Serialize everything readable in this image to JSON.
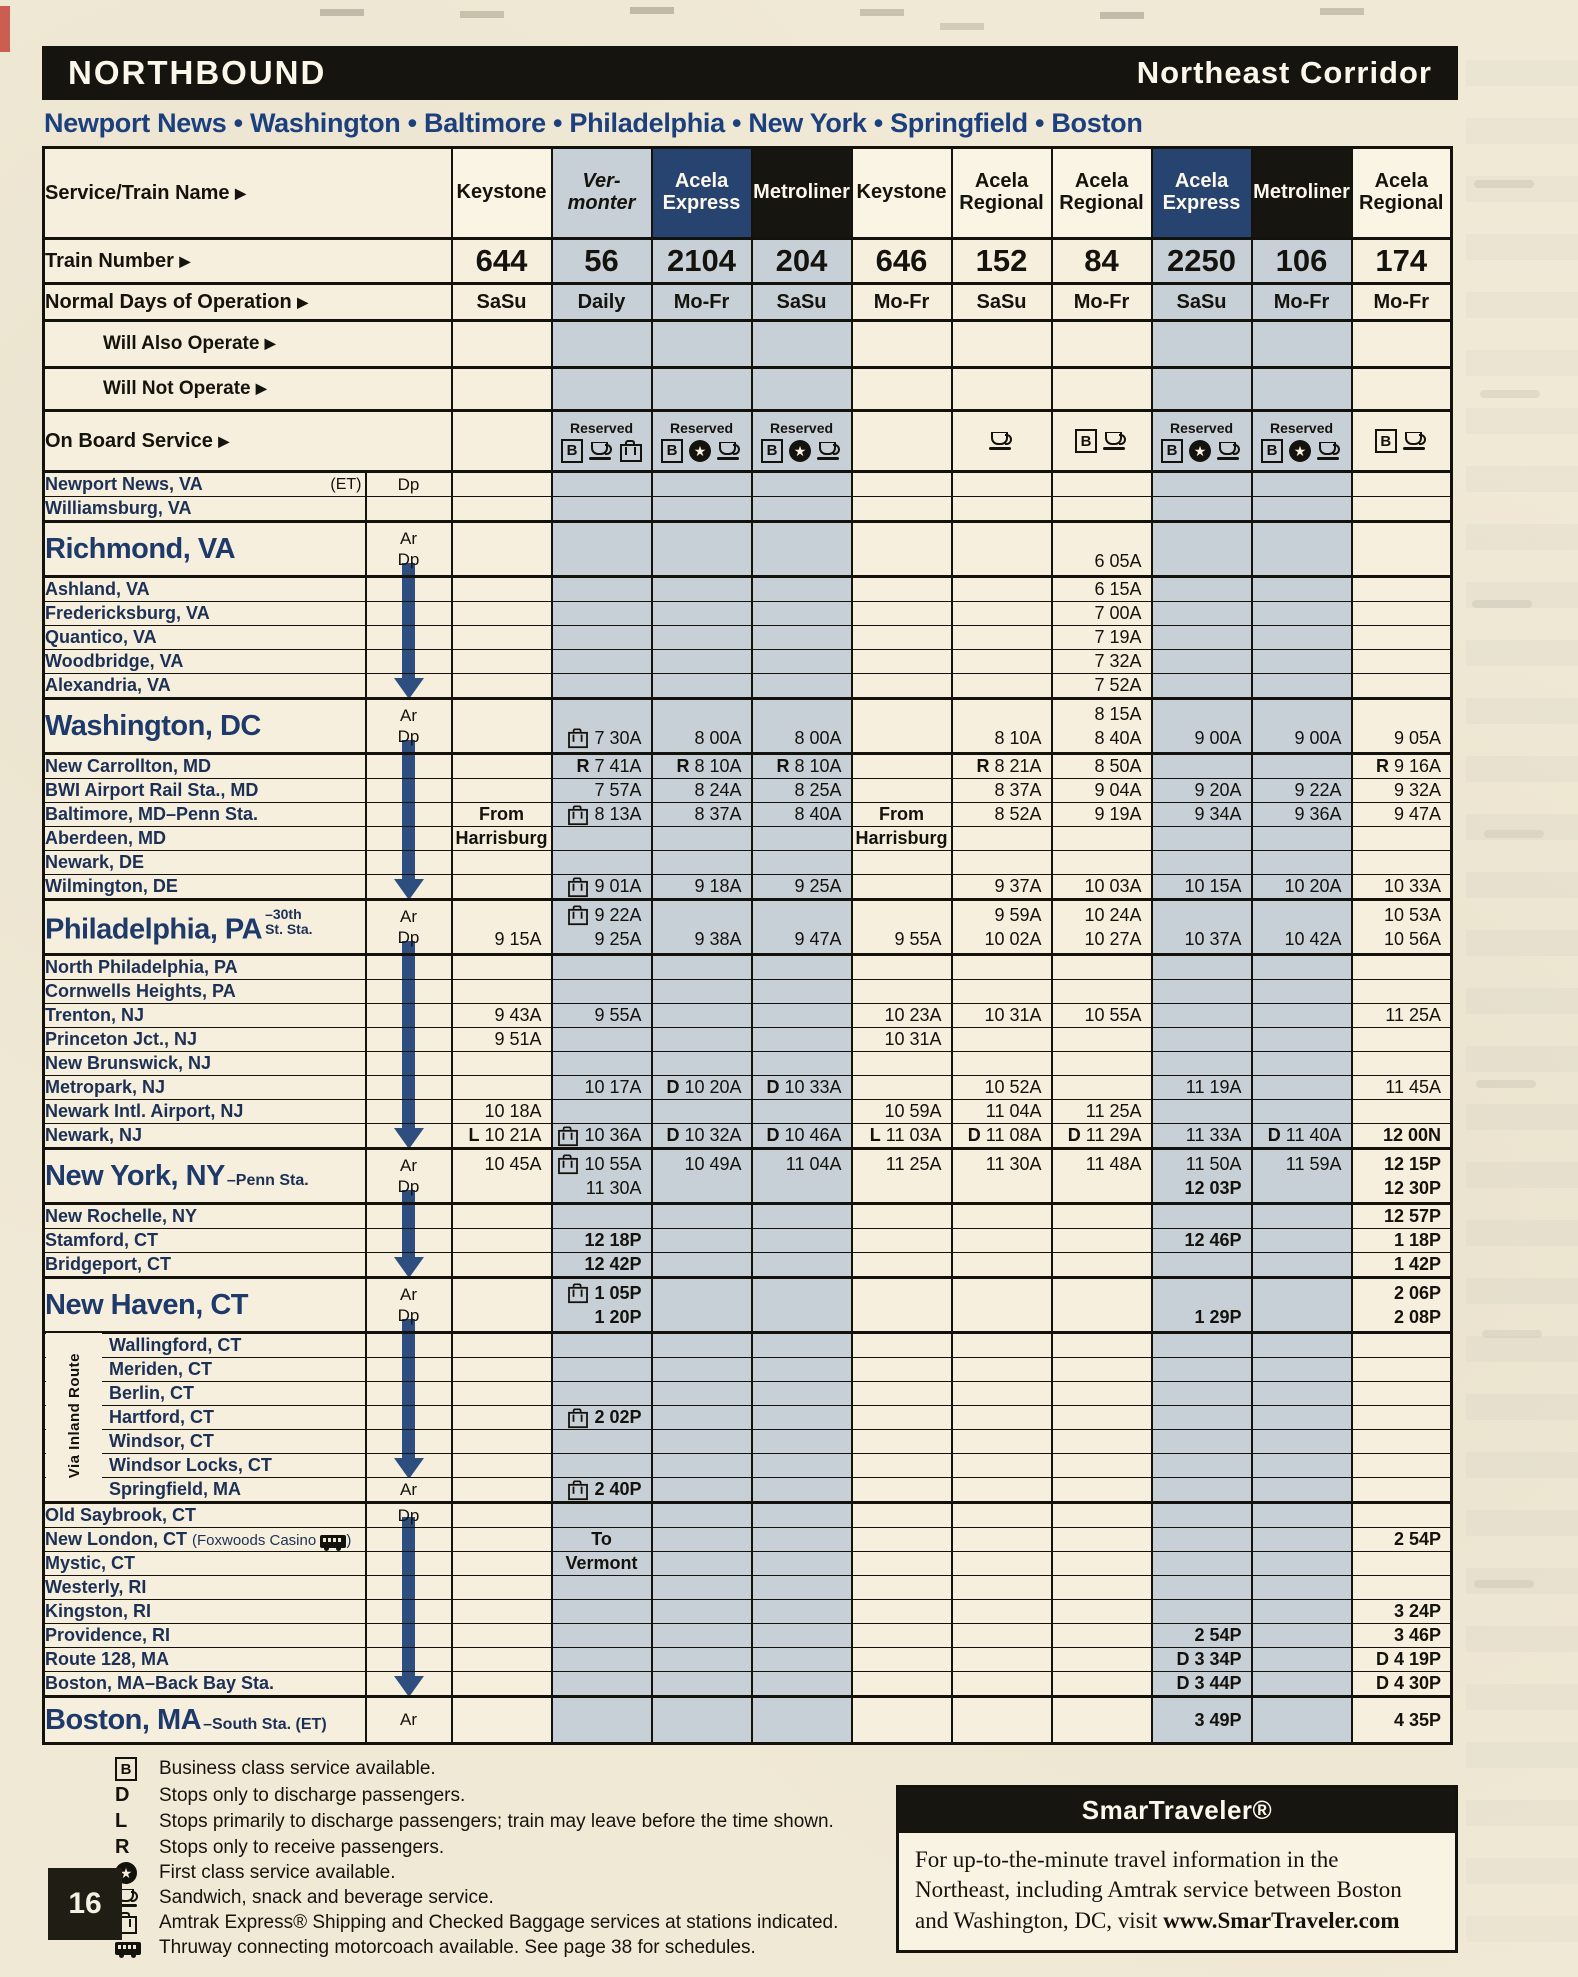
{
  "banner": {
    "left": "NORTHBOUND",
    "right": "Northeast Corridor"
  },
  "route_line": "Newport News • Washington • Baltimore • Philadelphia • New York • Springfield • Boston",
  "page_number": "16",
  "inland_label": "Via Inland Route",
  "labels": {
    "service": "Service/Train Name",
    "number": "Train Number",
    "days": "Normal Days of Operation",
    "also": "Will Also Operate",
    "not_op": "Will Not Operate",
    "onboard": "On Board Service",
    "reserved": "Reserved"
  },
  "trains": [
    {
      "service": [
        "Keystone"
      ],
      "style": "plain",
      "number": "644",
      "days": "SaSu",
      "shaded": false,
      "reserved": false,
      "icons": []
    },
    {
      "service": [
        "Ver-",
        "monter"
      ],
      "style": "gray",
      "number": "56",
      "days": "Daily",
      "shaded": true,
      "reserved": true,
      "icons": [
        "b",
        "cup",
        "bag"
      ]
    },
    {
      "service": [
        "Acela",
        "Express"
      ],
      "style": "navy",
      "number": "2104",
      "days": "Mo-Fr",
      "shaded": true,
      "reserved": true,
      "icons": [
        "b",
        "star",
        "cup"
      ]
    },
    {
      "service": [
        "Metroliner"
      ],
      "style": "black",
      "number": "204",
      "days": "SaSu",
      "shaded": true,
      "reserved": true,
      "icons": [
        "b",
        "star",
        "cup"
      ]
    },
    {
      "service": [
        "Keystone"
      ],
      "style": "plain",
      "number": "646",
      "days": "Mo-Fr",
      "shaded": false,
      "reserved": false,
      "icons": []
    },
    {
      "service": [
        "Acela",
        "Regional"
      ],
      "style": "plain",
      "number": "152",
      "days": "SaSu",
      "shaded": false,
      "reserved": false,
      "icons": [
        "cup"
      ]
    },
    {
      "service": [
        "Acela",
        "Regional"
      ],
      "style": "plain",
      "number": "84",
      "days": "Mo-Fr",
      "shaded": false,
      "reserved": false,
      "icons": [
        "b",
        "cup"
      ]
    },
    {
      "service": [
        "Acela",
        "Express"
      ],
      "style": "navy",
      "number": "2250",
      "days": "SaSu",
      "shaded": true,
      "reserved": true,
      "icons": [
        "b",
        "star",
        "cup"
      ]
    },
    {
      "service": [
        "Metroliner"
      ],
      "style": "black",
      "number": "106",
      "days": "Mo-Fr",
      "shaded": true,
      "reserved": true,
      "icons": [
        "b",
        "star",
        "cup"
      ]
    },
    {
      "service": [
        "Acela",
        "Regional"
      ],
      "style": "plain",
      "number": "174",
      "days": "Mo-Fr",
      "shaded": false,
      "reserved": false,
      "icons": [
        "b",
        "cup"
      ]
    }
  ],
  "stations": [
    {
      "kind": "n",
      "label": "Newport News, VA",
      "suffix": "(ET)",
      "note": "Dp",
      "arrow": "",
      "cells": [
        "",
        "",
        "",
        "",
        "",
        "",
        "",
        "",
        "",
        ""
      ]
    },
    {
      "kind": "n",
      "label": "Williamsburg, VA",
      "note": "",
      "arrow": "",
      "cells": [
        "",
        "",
        "",
        "",
        "",
        "",
        "",
        "",
        "",
        ""
      ]
    },
    {
      "kind": "c",
      "label": "Richmond, VA",
      "note": "Ar||Dp",
      "arrow": "start",
      "cells": [
        "",
        "",
        "",
        "",
        "",
        "",
        "||6 05A",
        "",
        "",
        ""
      ]
    },
    {
      "kind": "n",
      "label": "Ashland, VA",
      "note": "",
      "arrow": "line",
      "cells": [
        "",
        "",
        "",
        "",
        "",
        "",
        "6 15A",
        "",
        "",
        ""
      ]
    },
    {
      "kind": "n",
      "label": "Fredericksburg, VA",
      "note": "",
      "arrow": "line",
      "cells": [
        "",
        "",
        "",
        "",
        "",
        "",
        "7 00A",
        "",
        "",
        ""
      ]
    },
    {
      "kind": "n",
      "label": "Quantico, VA",
      "note": "",
      "arrow": "line",
      "cells": [
        "",
        "",
        "",
        "",
        "",
        "",
        "7 19A",
        "",
        "",
        ""
      ]
    },
    {
      "kind": "n",
      "label": "Woodbridge, VA",
      "note": "",
      "arrow": "line",
      "cells": [
        "",
        "",
        "",
        "",
        "",
        "",
        "7 32A",
        "",
        "",
        ""
      ]
    },
    {
      "kind": "n",
      "label": "Alexandria, VA",
      "note": "",
      "arrow": "head",
      "cells": [
        "",
        "",
        "",
        "",
        "",
        "",
        "7 52A",
        "",
        "",
        ""
      ]
    },
    {
      "kind": "c",
      "label": "Washington, DC",
      "note": "Ar||Dp",
      "arrow": "start",
      "cells": [
        "",
        "||bag|7 30A",
        "||8 00A",
        "||8 00A",
        "",
        "||8 10A",
        "8 15A||8 40A",
        "||9 00A",
        "||9 00A",
        "||9 05A"
      ]
    },
    {
      "kind": "n",
      "label": "New Carrollton, MD",
      "note": "",
      "arrow": "line",
      "cells": [
        "",
        "R|7 41A",
        "R|8 10A",
        "R|8 10A",
        "",
        "R|8 21A",
        "8 50A",
        "",
        "",
        "R|9 16A"
      ]
    },
    {
      "kind": "n",
      "label": "BWI Airport Rail Sta., MD",
      "note": "",
      "arrow": "line",
      "cells": [
        "",
        "7 57A",
        "8 24A",
        "8 25A",
        "",
        "8 37A",
        "9 04A",
        "9 20A",
        "9 22A",
        "9 32A"
      ]
    },
    {
      "kind": "n",
      "label": "Baltimore, MD–Penn Sta.",
      "note": "",
      "arrow": "line",
      "cells": [
        "From",
        "bag|8 13A",
        "8 37A",
        "8 40A",
        "From",
        "8 52A",
        "9 19A",
        "9 34A",
        "9 36A",
        "9 47A"
      ]
    },
    {
      "kind": "n",
      "label": "Aberdeen, MD",
      "note": "",
      "arrow": "line",
      "cells": [
        "Harrisburg",
        "",
        "",
        "",
        "Harrisburg",
        "",
        "",
        "",
        "",
        ""
      ]
    },
    {
      "kind": "n",
      "label": "Newark, DE",
      "note": "",
      "arrow": "line",
      "cells": [
        "",
        "",
        "",
        "",
        "",
        "",
        "",
        "",
        "",
        ""
      ]
    },
    {
      "kind": "n",
      "label": "Wilmington, DE",
      "note": "",
      "arrow": "head",
      "cells": [
        "",
        "bag|9 01A",
        "9 18A",
        "9 25A",
        "",
        "9 37A",
        "10 03A",
        "10 15A",
        "10 20A",
        "10 33A"
      ]
    },
    {
      "kind": "c",
      "label": "Philadelphia, PA",
      "stack": [
        "–30th",
        "St. Sta."
      ],
      "note": "Ar||Dp",
      "arrow": "start",
      "cells": [
        "||9 15A",
        "bag|9 22A||9 25A",
        "||9 38A",
        "||9 47A",
        "||9 55A",
        "9 59A||10 02A",
        "10 24A||10 27A",
        "||10 37A",
        "||10 42A",
        "10 53A||10 56A"
      ]
    },
    {
      "kind": "n",
      "label": "North Philadelphia, PA",
      "note": "",
      "arrow": "line",
      "cells": [
        "",
        "",
        "",
        "",
        "",
        "",
        "",
        "",
        "",
        ""
      ]
    },
    {
      "kind": "n",
      "label": "Cornwells Heights, PA",
      "note": "",
      "arrow": "line",
      "cells": [
        "",
        "",
        "",
        "",
        "",
        "",
        "",
        "",
        "",
        ""
      ]
    },
    {
      "kind": "n",
      "label": "Trenton, NJ",
      "note": "",
      "arrow": "line",
      "cells": [
        "9 43A",
        "9 55A",
        "",
        "",
        "10 23A",
        "10 31A",
        "10 55A",
        "",
        "",
        "11 25A"
      ]
    },
    {
      "kind": "n",
      "label": "Princeton Jct., NJ",
      "note": "",
      "arrow": "line",
      "cells": [
        "9 51A",
        "",
        "",
        "",
        "10 31A",
        "",
        "",
        "",
        "",
        ""
      ]
    },
    {
      "kind": "n",
      "label": "New Brunswick, NJ",
      "note": "",
      "arrow": "line",
      "cells": [
        "",
        "",
        "",
        "",
        "",
        "",
        "",
        "",
        "",
        ""
      ]
    },
    {
      "kind": "n",
      "label": "Metropark, NJ",
      "note": "",
      "arrow": "line",
      "cells": [
        "",
        "10 17A",
        "D|10 20A",
        "D|10 33A",
        "",
        "10 52A",
        "",
        "11 19A",
        "",
        "11 45A"
      ]
    },
    {
      "kind": "n",
      "label": "Newark Intl. Airport, NJ",
      "note": "",
      "arrow": "line",
      "cells": [
        "10 18A",
        "",
        "",
        "",
        "10 59A",
        "11 04A",
        "11 25A",
        "",
        "",
        ""
      ]
    },
    {
      "kind": "n",
      "label": "Newark, NJ",
      "note": "",
      "arrow": "head",
      "cells": [
        "L|10 21A",
        "bag|10 36A",
        "D|10 32A",
        "D|10 46A",
        "L|11 03A",
        "D|11 08A",
        "D|11 29A",
        "11 33A",
        "D|11 40A",
        "12 00N"
      ]
    },
    {
      "kind": "c",
      "label": "New York, NY",
      "sub": "–Penn Sta.",
      "note": "Ar||Dp",
      "arrow": "start",
      "cells": [
        "10 45A||",
        "bag|10 55A||11 30A",
        "10 49A||",
        "11 04A||",
        "11 25A||",
        "11 30A||",
        "11 48A||",
        "11 50A||12 03P",
        "11 59A||",
        "12 15P||12 30P"
      ]
    },
    {
      "kind": "n",
      "label": "New Rochelle, NY",
      "note": "",
      "arrow": "line",
      "cells": [
        "",
        "",
        "",
        "",
        "",
        "",
        "",
        "",
        "",
        "12 57P"
      ]
    },
    {
      "kind": "n",
      "label": "Stamford, CT",
      "note": "",
      "arrow": "line",
      "cells": [
        "",
        "12 18P",
        "",
        "",
        "",
        "",
        "",
        "12 46P",
        "",
        "1 18P"
      ]
    },
    {
      "kind": "n",
      "label": "Bridgeport, CT",
      "note": "",
      "arrow": "head",
      "cells": [
        "",
        "12 42P",
        "",
        "",
        "",
        "",
        "",
        "",
        "",
        "1 42P"
      ]
    },
    {
      "kind": "c",
      "label": "New Haven, CT",
      "note": "Ar||Dp",
      "arrow": "start",
      "cells": [
        "",
        "bag|1 05P||1 20P",
        "",
        "",
        "",
        "",
        "",
        "||1 29P",
        "",
        "2 06P||2 08P"
      ]
    },
    {
      "kind": "n",
      "label": "Wallingford, CT",
      "inland": true,
      "note": "",
      "arrow": "line",
      "cells": [
        "",
        "",
        "",
        "",
        "",
        "",
        "",
        "",
        "",
        ""
      ]
    },
    {
      "kind": "n",
      "label": "Meriden, CT",
      "inland": true,
      "note": "",
      "arrow": "line",
      "cells": [
        "",
        "",
        "",
        "",
        "",
        "",
        "",
        "",
        "",
        ""
      ]
    },
    {
      "kind": "n",
      "label": "Berlin, CT",
      "inland": true,
      "note": "",
      "arrow": "line",
      "cells": [
        "",
        "",
        "",
        "",
        "",
        "",
        "",
        "",
        "",
        ""
      ]
    },
    {
      "kind": "n",
      "label": "Hartford, CT",
      "inland": true,
      "note": "",
      "arrow": "line",
      "cells": [
        "",
        "bag|2 02P",
        "",
        "",
        "",
        "",
        "",
        "",
        "",
        ""
      ]
    },
    {
      "kind": "n",
      "label": "Windsor, CT",
      "inland": true,
      "note": "",
      "arrow": "line",
      "cells": [
        "",
        "",
        "",
        "",
        "",
        "",
        "",
        "",
        "",
        ""
      ]
    },
    {
      "kind": "n",
      "label": "Windsor Locks, CT",
      "inland": true,
      "note": "",
      "arrow": "head",
      "cells": [
        "",
        "",
        "",
        "",
        "",
        "",
        "",
        "",
        "",
        ""
      ]
    },
    {
      "kind": "n",
      "label": "Springfield, MA",
      "inland": true,
      "note": "Ar",
      "arrow": "",
      "cells": [
        "",
        "bag|2 40P",
        "",
        "",
        "",
        "",
        "",
        "",
        "",
        ""
      ]
    },
    {
      "kind": "n",
      "label": "Old Saybrook, CT",
      "thick": true,
      "note": "Dp",
      "arrow": "start",
      "cells": [
        "",
        "",
        "",
        "",
        "",
        "",
        "",
        "",
        "",
        ""
      ]
    },
    {
      "kind": "n",
      "label": "New London, CT",
      "par": "Foxwoods Casino",
      "note": "",
      "arrow": "line",
      "cells": [
        "",
        "To",
        "",
        "",
        "",
        "",
        "",
        "",
        "",
        "2 54P"
      ]
    },
    {
      "kind": "n",
      "label": "Mystic, CT",
      "note": "",
      "arrow": "line",
      "cells": [
        "",
        "Vermont",
        "",
        "",
        "",
        "",
        "",
        "",
        "",
        ""
      ]
    },
    {
      "kind": "n",
      "label": "Westerly, RI",
      "note": "",
      "arrow": "line",
      "cells": [
        "",
        "",
        "",
        "",
        "",
        "",
        "",
        "",
        "",
        ""
      ]
    },
    {
      "kind": "n",
      "label": "Kingston, RI",
      "note": "",
      "arrow": "line",
      "cells": [
        "",
        "",
        "",
        "",
        "",
        "",
        "",
        "",
        "",
        "3 24P"
      ]
    },
    {
      "kind": "n",
      "label": "Providence, RI",
      "note": "",
      "arrow": "line",
      "cells": [
        "",
        "",
        "",
        "",
        "",
        "",
        "",
        "2 54P",
        "",
        "3 46P"
      ]
    },
    {
      "kind": "n",
      "label": "Route 128, MA",
      "note": "",
      "arrow": "line",
      "cells": [
        "",
        "",
        "",
        "",
        "",
        "",
        "",
        "D|3 34P",
        "",
        "D|4 19P"
      ]
    },
    {
      "kind": "n",
      "label": "Boston, MA–Back Bay Sta.",
      "note": "",
      "arrow": "head",
      "cells": [
        "",
        "",
        "",
        "",
        "",
        "",
        "",
        "D|3 44P",
        "",
        "D|4 30P"
      ]
    },
    {
      "kind": "e",
      "label": "Boston, MA",
      "sub": "–South Sta. (ET)",
      "note": "Ar",
      "arrow": "",
      "cells": [
        "",
        "",
        "",
        "",
        "",
        "",
        "",
        "3 49P",
        "",
        "4 35P"
      ]
    }
  ],
  "legend": [
    {
      "icon": "b",
      "text": "Business class service available."
    },
    {
      "icon": "D",
      "text": "Stops only to discharge passengers."
    },
    {
      "icon": "L",
      "text": "Stops primarily to discharge passengers; train may leave before the time shown."
    },
    {
      "icon": "R",
      "text": "Stops only to receive passengers."
    },
    {
      "icon": "star",
      "text": "First class service available."
    },
    {
      "icon": "cup",
      "text": "Sandwich, snack and beverage service."
    },
    {
      "icon": "bag",
      "text": "Amtrak Express® Shipping and Checked Baggage services at stations indicated."
    },
    {
      "icon": "bus",
      "text": "Thruway connecting motorcoach available. See page 38 for schedules."
    }
  ],
  "smartraveler": {
    "title": "SmarTraveler®",
    "body": "For up-to-the-minute travel information in the Northeast, including Amtrak service between Boston and Washington, DC, visit ",
    "link": "www.SmarTraveler.com"
  }
}
